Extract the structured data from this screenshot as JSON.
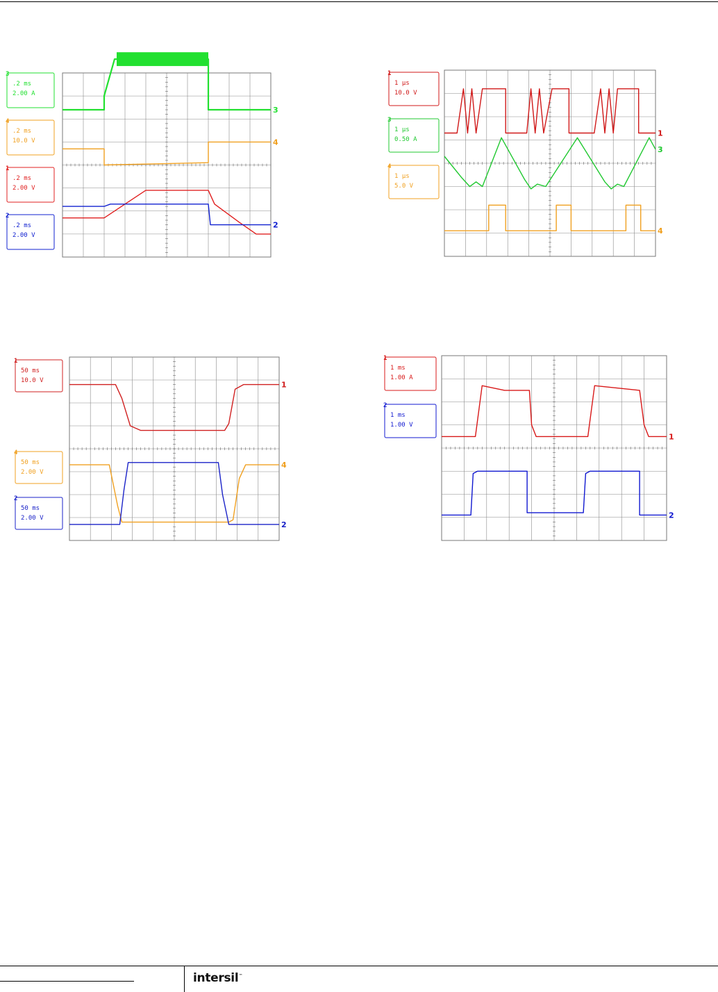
{
  "brand": {
    "logo_text": "intersil",
    "trademark": "™"
  },
  "chart_data": [
    {
      "type": "line",
      "title": "",
      "grid": true,
      "channels": [
        {
          "id": "3",
          "timebase": ".2 ms",
          "scale": "2.00 A",
          "color": "#22e030"
        },
        {
          "id": "4",
          "timebase": ".2 ms",
          "scale": "10.0 V",
          "color": "#f0a020"
        },
        {
          "id": "1",
          "timebase": ".2 ms",
          "scale": "2.00 V",
          "color": "#e02020"
        },
        {
          "id": "2",
          "timebase": ".2 ms",
          "scale": "2.00 V",
          "color": "#1020d0"
        }
      ],
      "right_markers": [
        "3",
        "4",
        "2"
      ],
      "series": [
        {
          "channel": "3",
          "x": [
            0,
            2.0,
            2.0,
            2.5,
            7.0,
            7.0,
            10
          ],
          "y": [
            6.4,
            6.4,
            7.0,
            8.6,
            8.6,
            6.4,
            6.4
          ]
        },
        {
          "channel": "4",
          "x": [
            0,
            2.0,
            2.0,
            7.0,
            7.0,
            10
          ],
          "y": [
            4.7,
            4.7,
            4.0,
            4.1,
            5.0,
            5.0
          ]
        },
        {
          "channel": "1",
          "x": [
            0,
            2.0,
            4.0,
            7.0,
            7.3,
            8.5,
            9.3,
            10
          ],
          "y": [
            1.7,
            1.7,
            2.9,
            2.9,
            2.3,
            1.5,
            1.0,
            1.0
          ]
        },
        {
          "channel": "2",
          "x": [
            0,
            2.0,
            2.3,
            7.0,
            7.1,
            10
          ],
          "y": [
            2.2,
            2.2,
            2.3,
            2.3,
            1.4,
            1.4
          ]
        }
      ]
    },
    {
      "type": "line",
      "title": "",
      "grid": true,
      "channels": [
        {
          "id": "1",
          "timebase": "1 µs",
          "scale": "10.0 V",
          "color": "#d01818"
        },
        {
          "id": "3",
          "timebase": "1 µs",
          "scale": "0.50 A",
          "color": "#20c830"
        },
        {
          "id": "4",
          "timebase": "1 µs",
          "scale": "5.0 V",
          "color": "#f0a020"
        }
      ],
      "right_markers": [
        "1",
        "3",
        "4"
      ],
      "series": [
        {
          "channel": "1",
          "x": [
            0,
            0.6,
            0.9,
            1.1,
            1.3,
            1.5,
            1.8,
            2.0,
            2.2,
            2.3,
            2.9,
            2.9,
            3.9,
            4.1,
            4.3,
            4.5,
            4.7,
            5.1,
            5.2,
            5.3,
            5.3,
            5.9,
            5.9,
            7.1,
            7.4,
            7.6,
            7.8,
            8.0,
            8.2,
            8.6,
            8.6,
            9.2,
            9.2,
            10
          ],
          "y": [
            5.3,
            5.3,
            7.2,
            5.3,
            7.2,
            5.3,
            7.2,
            7.2,
            7.2,
            7.2,
            7.2,
            5.3,
            5.3,
            7.2,
            5.3,
            7.2,
            5.3,
            7.2,
            7.2,
            7.2,
            7.2,
            7.2,
            5.3,
            5.3,
            7.2,
            5.3,
            7.2,
            5.3,
            7.2,
            7.2,
            7.2,
            7.2,
            5.3,
            5.3
          ]
        },
        {
          "channel": "3",
          "x": [
            0,
            0.8,
            1.2,
            1.5,
            1.8,
            2.7,
            3.8,
            4.1,
            4.4,
            4.8,
            6.3,
            7.6,
            7.9,
            8.2,
            8.5,
            9.7,
            10
          ],
          "y": [
            4.3,
            3.4,
            3.0,
            3.2,
            3.0,
            5.1,
            3.3,
            2.9,
            3.1,
            3.0,
            5.1,
            3.2,
            2.9,
            3.1,
            3.0,
            5.1,
            4.6
          ]
        },
        {
          "channel": "4",
          "x": [
            0,
            2.1,
            2.1,
            2.9,
            2.9,
            5.3,
            5.3,
            6.0,
            6.0,
            8.6,
            8.6,
            9.3,
            9.3,
            10
          ],
          "y": [
            1.1,
            1.1,
            2.2,
            2.2,
            1.1,
            1.1,
            2.2,
            2.2,
            1.1,
            1.1,
            2.2,
            2.2,
            1.1,
            1.1
          ]
        }
      ]
    },
    {
      "type": "line",
      "title": "",
      "grid": true,
      "channels": [
        {
          "id": "1",
          "timebase": "50 ms",
          "scale": "10.0 V",
          "color": "#d02020"
        },
        {
          "id": "4",
          "timebase": "50 ms",
          "scale": "2.00 V",
          "color": "#f0a020"
        },
        {
          "id": "2",
          "timebase": "50 ms",
          "scale": "2.00 V",
          "color": "#1a22c8"
        }
      ],
      "right_markers": [
        "1",
        "4",
        "2"
      ],
      "series": [
        {
          "channel": "1",
          "x": [
            0,
            2.2,
            2.5,
            2.9,
            3.4,
            7.4,
            7.6,
            7.9,
            8.3,
            10
          ],
          "y": [
            6.8,
            6.8,
            6.2,
            5.0,
            4.8,
            4.8,
            5.1,
            6.6,
            6.8,
            6.8
          ]
        },
        {
          "channel": "4",
          "x": [
            0,
            1.9,
            2.3,
            2.5,
            7.6,
            7.8,
            8.1,
            8.4,
            10
          ],
          "y": [
            3.3,
            3.3,
            1.5,
            0.8,
            0.8,
            0.9,
            2.7,
            3.3,
            3.3
          ]
        },
        {
          "channel": "2",
          "x": [
            0,
            2.4,
            2.6,
            2.8,
            7.1,
            7.3,
            7.6,
            10
          ],
          "y": [
            0.7,
            0.7,
            2.2,
            3.4,
            3.4,
            2.0,
            0.7,
            0.7
          ]
        }
      ]
    },
    {
      "type": "line",
      "title": "",
      "grid": true,
      "channels": [
        {
          "id": "1",
          "timebase": "1 ms",
          "scale": "1.00 A",
          "color": "#d81818"
        },
        {
          "id": "2",
          "timebase": "1 ms",
          "scale": "1.00 V",
          "color": "#1018d0"
        }
      ],
      "right_markers": [
        "1",
        "2"
      ],
      "series": [
        {
          "channel": "1",
          "x": [
            0,
            1.5,
            1.8,
            2.8,
            3.9,
            4.0,
            4.2,
            6.5,
            6.8,
            8.8,
            9.0,
            9.2,
            10
          ],
          "y": [
            4.5,
            4.5,
            6.7,
            6.5,
            6.5,
            5.0,
            4.5,
            4.5,
            6.7,
            6.5,
            5.0,
            4.5,
            4.5
          ]
        },
        {
          "channel": "2",
          "x": [
            0,
            1.3,
            1.4,
            1.6,
            3.8,
            3.8,
            6.3,
            6.4,
            6.6,
            8.8,
            8.8,
            10
          ],
          "y": [
            1.1,
            1.1,
            2.9,
            3.0,
            3.0,
            1.2,
            1.2,
            2.9,
            3.0,
            3.0,
            1.1,
            1.1
          ]
        }
      ]
    }
  ]
}
